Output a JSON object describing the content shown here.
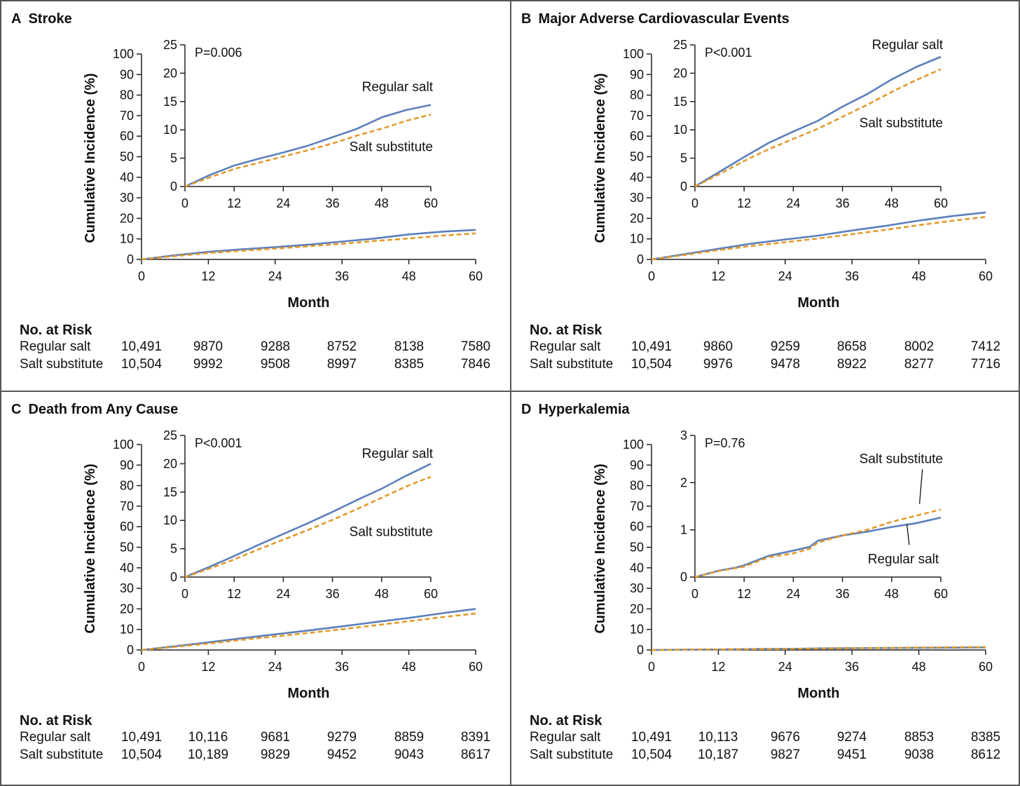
{
  "colors": {
    "regular": "#5b7fbc",
    "substitute": "#e39a2b",
    "axis": "#222222",
    "border": "#555555"
  },
  "chart_data": [
    {
      "letter": "A",
      "title": "Stroke",
      "type": "line",
      "xlabel": "Month",
      "ylabel": "Cumulative Incidence (%)",
      "xticks": [
        0,
        12,
        24,
        36,
        48,
        60
      ],
      "xlim": [
        0,
        60
      ],
      "yticks": [
        0,
        10,
        20,
        30,
        40,
        50,
        60,
        70,
        80,
        90,
        100
      ],
      "ylim": [
        0,
        100
      ],
      "inset": {
        "ylim": [
          0,
          25
        ],
        "yticks": [
          0,
          5,
          10,
          15,
          20,
          25
        ],
        "pvalue": "P=0.006",
        "labels": [
          {
            "text": "Regular salt",
            "series": 0,
            "x": 60,
            "y": 17.6,
            "anchor": "end"
          },
          {
            "text": "Salt substitute",
            "series": 1,
            "x": 60,
            "y": 7.0,
            "anchor": "end"
          }
        ]
      },
      "series": [
        {
          "name": "Regular salt",
          "x": [
            0,
            6,
            12,
            18,
            24,
            30,
            36,
            42,
            48,
            54,
            60
          ],
          "values": [
            0,
            2.0,
            3.7,
            4.9,
            6.0,
            7.2,
            8.7,
            10.2,
            12.2,
            13.5,
            14.4
          ]
        },
        {
          "name": "Salt substitute",
          "x": [
            0,
            6,
            12,
            18,
            24,
            30,
            36,
            42,
            48,
            54,
            60
          ],
          "values": [
            0,
            1.6,
            3.1,
            4.2,
            5.3,
            6.4,
            7.6,
            9.0,
            10.2,
            11.6,
            12.7
          ]
        }
      ],
      "risk_table": {
        "title": "No. at Risk",
        "rows": [
          {
            "label": "Regular salt",
            "values": [
              "10,491",
              "9870",
              "9288",
              "8752",
              "8138",
              "7580"
            ]
          },
          {
            "label": "Salt substitute",
            "values": [
              "10,504",
              "9992",
              "9508",
              "8997",
              "8385",
              "7846"
            ]
          }
        ]
      }
    },
    {
      "letter": "B",
      "title": "Major Adverse Cardiovascular Events",
      "type": "line",
      "xlabel": "Month",
      "ylabel": "Cumulative Incidence (%)",
      "xticks": [
        0,
        12,
        24,
        36,
        48,
        60
      ],
      "xlim": [
        0,
        60
      ],
      "yticks": [
        0,
        10,
        20,
        30,
        40,
        50,
        60,
        70,
        80,
        90,
        100
      ],
      "ylim": [
        0,
        100
      ],
      "inset": {
        "ylim": [
          0,
          25
        ],
        "yticks": [
          0,
          5,
          10,
          15,
          20,
          25
        ],
        "pvalue": "P<0.001",
        "labels": [
          {
            "text": "Regular salt",
            "series": 0,
            "x": 60,
            "y": 25.0,
            "anchor": "end"
          },
          {
            "text": "Salt substitute",
            "series": 1,
            "x": 60,
            "y": 11.2,
            "anchor": "end"
          }
        ]
      },
      "series": [
        {
          "name": "Regular salt",
          "x": [
            0,
            6,
            12,
            18,
            24,
            30,
            36,
            42,
            48,
            54,
            60
          ],
          "values": [
            0,
            2.6,
            5.2,
            7.7,
            9.7,
            11.6,
            14.1,
            16.3,
            18.9,
            21.1,
            22.9
          ]
        },
        {
          "name": "Salt substitute",
          "x": [
            0,
            6,
            12,
            18,
            24,
            30,
            36,
            42,
            48,
            54,
            60
          ],
          "values": [
            0,
            2.2,
            4.5,
            6.6,
            8.4,
            10.2,
            12.3,
            14.4,
            16.7,
            18.8,
            20.7
          ]
        }
      ],
      "risk_table": {
        "title": "No. at Risk",
        "rows": [
          {
            "label": "Regular salt",
            "values": [
              "10,491",
              "9860",
              "9259",
              "8658",
              "8002",
              "7412"
            ]
          },
          {
            "label": "Salt substitute",
            "values": [
              "10,504",
              "9976",
              "9478",
              "8922",
              "8277",
              "7716"
            ]
          }
        ]
      }
    },
    {
      "letter": "C",
      "title": "Death from Any Cause",
      "type": "line",
      "xlabel": "Month",
      "ylabel": "Cumulative Incidence (%)",
      "xticks": [
        0,
        12,
        24,
        36,
        48,
        60
      ],
      "xlim": [
        0,
        60
      ],
      "yticks": [
        0,
        10,
        20,
        30,
        40,
        50,
        60,
        70,
        80,
        90,
        100
      ],
      "ylim": [
        0,
        100
      ],
      "inset": {
        "ylim": [
          0,
          25
        ],
        "yticks": [
          0,
          5,
          10,
          15,
          20,
          25
        ],
        "pvalue": "P<0.001",
        "labels": [
          {
            "text": "Regular salt",
            "series": 0,
            "x": 60,
            "y": 21.8,
            "anchor": "end"
          },
          {
            "text": "Salt substitute",
            "series": 1,
            "x": 60,
            "y": 8.0,
            "anchor": "end"
          }
        ]
      },
      "series": [
        {
          "name": "Regular salt",
          "x": [
            0,
            6,
            12,
            18,
            24,
            30,
            36,
            42,
            48,
            54,
            60
          ],
          "values": [
            0,
            1.8,
            3.7,
            5.7,
            7.6,
            9.5,
            11.5,
            13.6,
            15.6,
            17.9,
            20.0
          ]
        },
        {
          "name": "Salt substitute",
          "x": [
            0,
            6,
            12,
            18,
            24,
            30,
            36,
            42,
            48,
            54,
            60
          ],
          "values": [
            0,
            1.5,
            3.1,
            4.9,
            6.6,
            8.3,
            10.1,
            12.0,
            14.0,
            16.0,
            17.7
          ]
        }
      ],
      "risk_table": {
        "title": "No. at Risk",
        "rows": [
          {
            "label": "Regular salt",
            "values": [
              "10,491",
              "10,116",
              "9681",
              "9279",
              "8859",
              "8391"
            ]
          },
          {
            "label": "Salt substitute",
            "values": [
              "10,504",
              "10,189",
              "9829",
              "9452",
              "9043",
              "8617"
            ]
          }
        ]
      }
    },
    {
      "letter": "D",
      "title": "Hyperkalemia",
      "type": "line",
      "xlabel": "Month",
      "ylabel": "Cumulative Incidence (%)",
      "xticks": [
        0,
        12,
        24,
        36,
        48,
        60
      ],
      "xlim": [
        0,
        60
      ],
      "yticks": [
        0,
        10,
        20,
        30,
        40,
        50,
        60,
        70,
        80,
        90,
        100
      ],
      "ylim": [
        0,
        100
      ],
      "inset": {
        "ylim": [
          0,
          3
        ],
        "yticks": [
          0,
          1,
          2,
          3
        ],
        "pvalue": "P=0.76",
        "labels": [
          {
            "text": "Salt substitute",
            "series": 1,
            "x": 60,
            "y": 2.5,
            "anchor": "end",
            "leader": [
              [
                55.5,
                2.28
              ],
              [
                54.8,
                1.55
              ]
            ]
          },
          {
            "text": "Regular salt",
            "series": 0,
            "x": 59,
            "y": 0.38,
            "anchor": "end",
            "leader": [
              [
                52.3,
                0.68
              ],
              [
                51.7,
                1.12
              ]
            ]
          }
        ]
      },
      "series": [
        {
          "name": "Regular salt",
          "x": [
            0,
            6,
            10,
            12,
            18,
            24,
            28,
            30,
            36,
            42,
            48,
            54,
            60
          ],
          "values": [
            0,
            0.14,
            0.2,
            0.25,
            0.45,
            0.56,
            0.64,
            0.77,
            0.88,
            0.96,
            1.06,
            1.14,
            1.26
          ]
        },
        {
          "name": "Salt substitute",
          "x": [
            0,
            6,
            10,
            12,
            18,
            24,
            28,
            30,
            36,
            42,
            48,
            54,
            60
          ],
          "values": [
            0,
            0.13,
            0.19,
            0.22,
            0.42,
            0.5,
            0.6,
            0.73,
            0.88,
            1.0,
            1.17,
            1.3,
            1.43
          ]
        }
      ],
      "risk_table": {
        "title": "No. at Risk",
        "rows": [
          {
            "label": "Regular salt",
            "values": [
              "10,491",
              "10,113",
              "9676",
              "9274",
              "8853",
              "8385"
            ]
          },
          {
            "label": "Salt substitute",
            "values": [
              "10,504",
              "10,187",
              "9827",
              "9451",
              "9038",
              "8612"
            ]
          }
        ]
      }
    }
  ]
}
